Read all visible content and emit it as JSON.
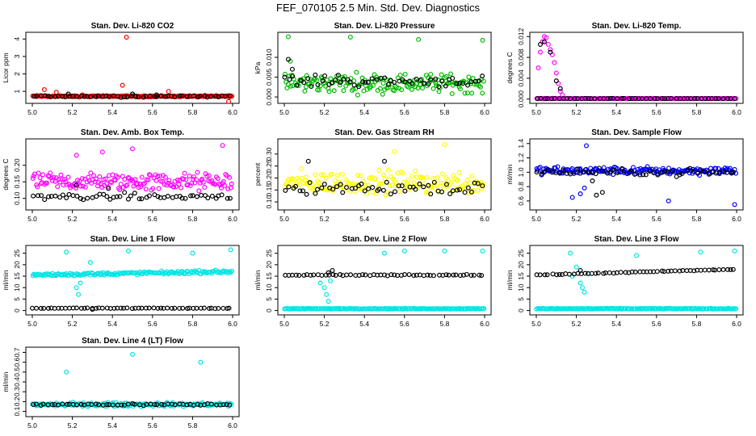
{
  "title": "FEF_070105  2.5 Min. Std. Dev. Diagnostics",
  "chart_data": [
    {
      "type": "scatter",
      "title": "Stan. Dev. Li-820 CO2",
      "ylabel": "Licor ppm",
      "xlim": [
        5.0,
        6.0
      ],
      "ylim": [
        0.5,
        4.2
      ],
      "xticks": [
        "5.0",
        "5.2",
        "5.4",
        "5.6",
        "5.8",
        "6.0"
      ],
      "yticks": [
        "1",
        "2",
        "3",
        "4"
      ],
      "ytick_values": [
        1,
        2,
        3,
        4
      ],
      "series": [
        {
          "color": "#ff0000",
          "base": 0.72,
          "spread": 0.06,
          "outliers": [
            [
              5.06,
              1.1
            ],
            [
              5.12,
              0.95
            ],
            [
              5.25,
              0.8
            ],
            [
              5.45,
              1.35
            ],
            [
              5.47,
              4.1
            ],
            [
              5.68,
              1.0
            ],
            [
              5.98,
              0.42
            ]
          ]
        },
        {
          "color": "#000000",
          "base": 0.72,
          "spread": 0.08,
          "outliers": [
            [
              5.18,
              0.85
            ],
            [
              5.5,
              0.85
            ],
            [
              5.62,
              0.8
            ]
          ]
        }
      ]
    },
    {
      "type": "scatter",
      "title": "Stan. Dev. Li-820 Pressure",
      "ylabel": "kPa",
      "xlim": [
        5.0,
        6.0
      ],
      "ylim": [
        -0.0008,
        0.0155
      ],
      "xticks": [
        "5.0",
        "5.2",
        "5.4",
        "5.6",
        "5.8",
        "6.0"
      ],
      "yticks": [
        "0.000",
        "0.005",
        "0.010"
      ],
      "ytick_values": [
        0,
        0.005,
        0.01
      ],
      "series": [
        {
          "color": "#00bb00",
          "base": 0.0035,
          "spread": 0.0035,
          "outliers": [
            [
              5.02,
              0.0152
            ],
            [
              5.33,
              0.0151
            ],
            [
              5.67,
              0.0145
            ],
            [
              5.99,
              0.0143
            ],
            [
              5.03,
              0.009
            ]
          ]
        },
        {
          "color": "#000000",
          "base": 0.004,
          "spread": 0.002,
          "outliers": [
            [
              5.02,
              0.0095
            ],
            [
              5.04,
              0.007
            ],
            [
              5.27,
              0.0055
            ]
          ]
        }
      ]
    },
    {
      "type": "scatter",
      "title": "Stan. Dev. Li-820 Temp.",
      "ylabel": "degrees C",
      "xlim": [
        5.0,
        6.0
      ],
      "ylim": [
        -0.0002,
        0.0122
      ],
      "xticks": [
        "5.0",
        "5.2",
        "5.4",
        "5.6",
        "5.8",
        "6.0"
      ],
      "yticks": [
        "0.000",
        "0.004",
        "0.008",
        "0.012"
      ],
      "ytick_values": [
        0,
        0.004,
        0.008,
        0.012
      ],
      "series": [
        {
          "color": "#ff00ff",
          "base": 0.0001,
          "spread": 5e-05,
          "outliers": [
            [
              5.01,
              0.006
            ],
            [
              5.02,
              0.009
            ],
            [
              5.03,
              0.011
            ],
            [
              5.04,
              0.012
            ],
            [
              5.05,
              0.0118
            ],
            [
              5.06,
              0.0105
            ],
            [
              5.07,
              0.0095
            ],
            [
              5.08,
              0.0085
            ],
            [
              5.09,
              0.007
            ],
            [
              5.1,
              0.005
            ],
            [
              5.11,
              0.003
            ],
            [
              5.12,
              0.0015
            ],
            [
              5.13,
              0.0008
            ]
          ]
        },
        {
          "color": "#000000",
          "base": 0.0001,
          "spread": 5e-05,
          "outliers": [
            [
              5.02,
              0.0105
            ],
            [
              5.04,
              0.011
            ],
            [
              5.07,
              0.009
            ],
            [
              5.1,
              0.0035
            ],
            [
              5.12,
              0.002
            ]
          ]
        }
      ]
    },
    {
      "type": "scatter",
      "title": "Stan. Dev. Amb. Box Temp.",
      "ylabel": "degrees C",
      "xlim": [
        5.0,
        6.0
      ],
      "ylim": [
        0.075,
        0.27
      ],
      "xticks": [
        "5.0",
        "5.2",
        "5.4",
        "5.6",
        "5.8",
        "6.0"
      ],
      "yticks": [
        "0.10",
        "0.15",
        "0.20"
      ],
      "ytick_values": [
        0.1,
        0.15,
        0.2
      ],
      "series": [
        {
          "color": "#ff00ff",
          "base": 0.15,
          "spread": 0.04,
          "outliers": [
            [
              5.5,
              0.25
            ],
            [
              5.95,
              0.26
            ],
            [
              5.35,
              0.24
            ],
            [
              5.22,
              0.23
            ]
          ]
        },
        {
          "color": "#000000",
          "base": 0.105,
          "spread": 0.015,
          "outliers": [
            [
              5.22,
              0.14
            ],
            [
              5.38,
              0.13
            ]
          ]
        }
      ]
    },
    {
      "type": "scatter",
      "title": "Stan. Dev. Gas Stream RH",
      "ylabel": "percent",
      "xlim": [
        5.0,
        6.0
      ],
      "ylim": [
        0.08,
        0.35
      ],
      "xticks": [
        "5.0",
        "5.2",
        "5.4",
        "5.6",
        "5.8",
        "6.0"
      ],
      "yticks": [
        "0.10",
        "0.15",
        "0.20",
        "0.25",
        "0.30"
      ],
      "ytick_values": [
        0.1,
        0.15,
        0.2,
        0.25,
        0.3
      ],
      "series": [
        {
          "color": "#ffff00",
          "base": 0.18,
          "spread": 0.07,
          "outliers": [
            [
              5.8,
              0.34
            ],
            [
              5.55,
              0.31
            ]
          ]
        },
        {
          "color": "#000000",
          "base": 0.16,
          "spread": 0.05,
          "outliers": [
            [
              5.12,
              0.27
            ],
            [
              5.5,
              0.27
            ]
          ]
        }
      ]
    },
    {
      "type": "scatter",
      "title": "Stan. Dev. Sample Flow",
      "ylabel": "ml/min",
      "xlim": [
        5.0,
        6.0
      ],
      "ylim": [
        0.52,
        1.42
      ],
      "xticks": [
        "5.0",
        "5.2",
        "5.4",
        "5.6",
        "5.8",
        "6.0"
      ],
      "yticks": [
        "0.6",
        "0.8",
        "1.0",
        "1.2",
        "1.4"
      ],
      "ytick_values": [
        0.6,
        0.8,
        1.0,
        1.2,
        1.4
      ],
      "series": [
        {
          "color": "#0000ff",
          "base": 1.02,
          "spread": 0.08,
          "outliers": [
            [
              5.25,
              1.37
            ],
            [
              5.22,
              0.7
            ],
            [
              5.18,
              0.65
            ],
            [
              5.24,
              0.78
            ],
            [
              5.66,
              0.6
            ],
            [
              5.99,
              0.55
            ]
          ]
        },
        {
          "color": "#000000",
          "base": 1.0,
          "spread": 0.07,
          "outliers": [
            [
              5.3,
              0.68
            ],
            [
              5.33,
              0.72
            ],
            [
              5.28,
              0.88
            ]
          ]
        }
      ]
    },
    {
      "type": "scatter",
      "title": "Stan. Dev. Line 1 Flow",
      "ylabel": "ml/min",
      "xlim": [
        5.0,
        6.0
      ],
      "ylim": [
        -0.5,
        27
      ],
      "xticks": [
        "5.0",
        "5.2",
        "5.4",
        "5.6",
        "5.8",
        "6.0"
      ],
      "yticks": [
        "0",
        "5",
        "10",
        "15",
        "20",
        "25"
      ],
      "ytick_values": [
        0,
        5,
        10,
        15,
        20,
        25
      ],
      "series": [
        {
          "color": "#00e5e5",
          "base": 15.5,
          "spread": 1.0,
          "trend": 1.5,
          "outliers": [
            [
              5.17,
              25.5
            ],
            [
              5.22,
              10
            ],
            [
              5.23,
              7
            ],
            [
              5.24,
              12
            ],
            [
              5.29,
              21
            ],
            [
              5.48,
              26
            ],
            [
              5.8,
              25
            ],
            [
              5.99,
              26.5
            ]
          ]
        },
        {
          "color": "#000000",
          "base": 1.0,
          "spread": 0.2,
          "outliers": [
            [
              5.3,
              0.5
            ]
          ]
        }
      ]
    },
    {
      "type": "scatter",
      "title": "Stan. Dev. Line 2 Flow",
      "ylabel": "ml/min",
      "xlim": [
        5.0,
        6.0
      ],
      "ylim": [
        -0.5,
        27
      ],
      "xticks": [
        "5.0",
        "5.2",
        "5.4",
        "5.6",
        "5.8",
        "6.0"
      ],
      "yticks": [
        "0",
        "5",
        "10",
        "15",
        "20",
        "25"
      ],
      "ytick_values": [
        0,
        5,
        10,
        15,
        20,
        25
      ],
      "series": [
        {
          "color": "#00e5e5",
          "base": 0.8,
          "spread": 0.25,
          "outliers": [
            [
              5.21,
              7
            ],
            [
              5.22,
              4
            ],
            [
              5.2,
              10
            ],
            [
              5.18,
              12
            ],
            [
              5.23,
              13
            ],
            [
              5.6,
              26
            ],
            [
              5.5,
              25
            ],
            [
              5.99,
              26
            ],
            [
              5.8,
              26
            ]
          ]
        },
        {
          "color": "#000000",
          "base": 15.5,
          "spread": 0.4,
          "outliers": [
            [
              5.24,
              17.5
            ],
            [
              5.22,
              16.5
            ]
          ]
        }
      ]
    },
    {
      "type": "scatter",
      "title": "Stan. Dev. Line 3 Flow",
      "ylabel": "ml/min",
      "xlim": [
        5.0,
        6.0
      ],
      "ylim": [
        -0.5,
        27
      ],
      "xticks": [
        "5.0",
        "5.2",
        "5.4",
        "5.6",
        "5.8",
        "6.0"
      ],
      "yticks": [
        "0",
        "5",
        "10",
        "15",
        "20",
        "25"
      ],
      "ytick_values": [
        0,
        5,
        10,
        15,
        20,
        25
      ],
      "series": [
        {
          "color": "#00e5e5",
          "base": 0.8,
          "spread": 0.25,
          "outliers": [
            [
              5.24,
              8
            ],
            [
              5.23,
              10
            ],
            [
              5.18,
              15
            ],
            [
              5.2,
              19
            ],
            [
              5.22,
              12
            ],
            [
              5.17,
              25
            ],
            [
              5.26,
              16
            ],
            [
              5.5,
              24
            ],
            [
              5.82,
              25.5
            ],
            [
              5.99,
              26
            ]
          ]
        },
        {
          "color": "#000000",
          "base": 15.5,
          "spread": 0.3,
          "trend": 2.5,
          "outliers": [
            [
              5.22,
              17.5
            ]
          ]
        }
      ]
    },
    {
      "type": "scatter",
      "title": "Stan. Dev. Line 4 (LT) Flow",
      "ylabel": "ml/min",
      "xlim": [
        5.0,
        6.0
      ],
      "ylim": [
        0.08,
        0.72
      ],
      "xticks": [
        "5.0",
        "5.2",
        "5.4",
        "5.6",
        "5.8",
        "6.0"
      ],
      "yticks": [
        "0.1",
        "0.2",
        "0.3",
        "0.4",
        "0.5",
        "0.6",
        "0.7"
      ],
      "ytick_values": [
        0.1,
        0.2,
        0.3,
        0.4,
        0.5,
        0.6,
        0.7
      ],
      "series": [
        {
          "color": "#00e5e5",
          "base": 0.17,
          "spread": 0.03,
          "outliers": [
            [
              5.17,
              0.5
            ],
            [
              5.5,
              0.68
            ],
            [
              5.84,
              0.6
            ]
          ]
        },
        {
          "color": "#000000",
          "base": 0.17,
          "spread": 0.015,
          "outliers": []
        }
      ]
    }
  ]
}
